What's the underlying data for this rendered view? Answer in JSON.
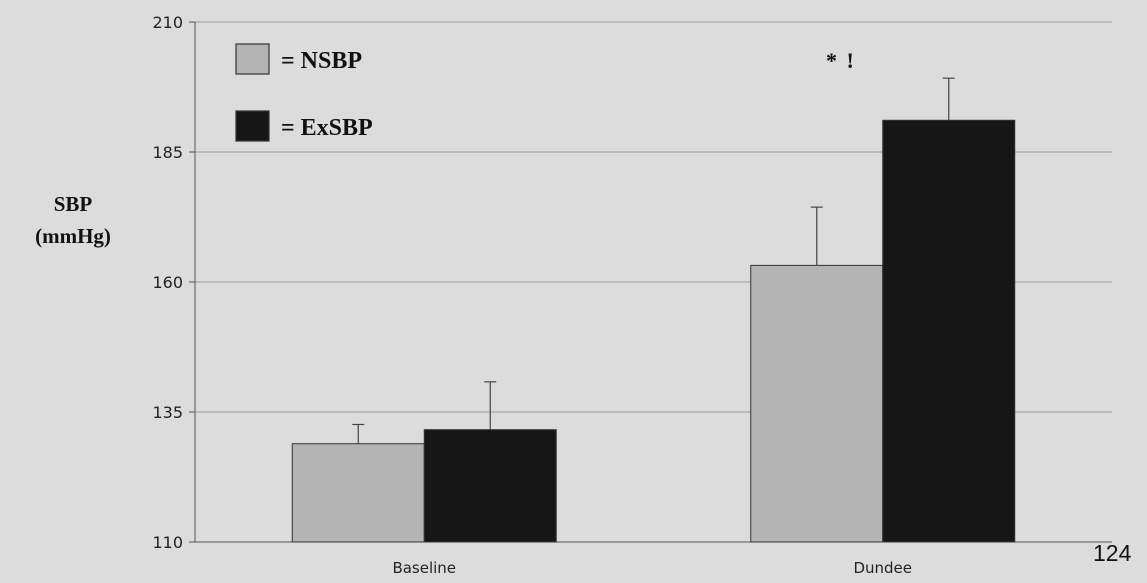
{
  "chart_data": {
    "type": "bar",
    "categories": [
      "Baseline",
      "Dundee"
    ],
    "series": [
      {
        "name": "NSBP",
        "values": [
          128.9,
          163.2
        ],
        "error": [
          3.7,
          11.2
        ],
        "color": "#b4b4b4"
      },
      {
        "name": "ExSBP",
        "values": [
          131.6,
          191.1
        ],
        "error": [
          9.2,
          8.1
        ],
        "color": "#161616"
      }
    ],
    "ylabel": "SBP (mmHg)",
    "ylabel_lines": [
      "SBP",
      "(mmHg)"
    ],
    "ylim": [
      110,
      210
    ],
    "yticks": [
      110,
      135,
      160,
      185,
      210
    ],
    "grid": true,
    "legend_entries": [
      "= NSBP",
      "= ExSBP"
    ],
    "legend_position": "top-left",
    "annotation": "* !"
  },
  "page_number": "124"
}
